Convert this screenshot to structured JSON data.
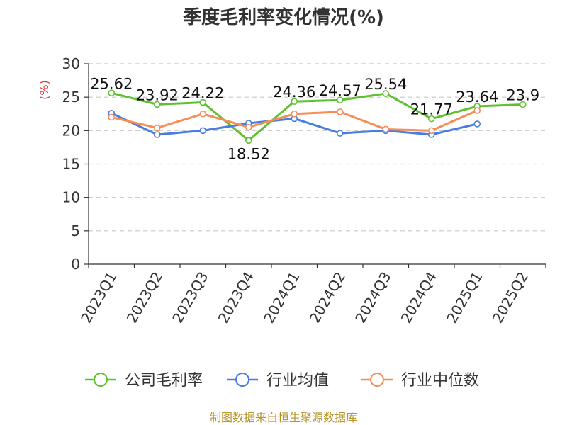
{
  "chart_data": {
    "type": "line",
    "title": "季度毛利率变化情况(%)",
    "ylabel": "(%)",
    "categories": [
      "2023Q1",
      "2023Q2",
      "2023Q3",
      "2023Q4",
      "2024Q1",
      "2024Q2",
      "2024Q3",
      "2024Q4",
      "2025Q1",
      "2025Q2"
    ],
    "ylim": [
      0,
      30
    ],
    "yticks": [
      "0",
      "5",
      "10",
      "15",
      "20",
      "25",
      "30"
    ],
    "grid": true,
    "legend_position": "bottom",
    "series": [
      {
        "name": "公司毛利率",
        "color": "#5ec130",
        "values": [
          25.62,
          23.92,
          24.22,
          18.52,
          24.36,
          24.57,
          25.54,
          21.77,
          23.64,
          23.9
        ],
        "labels": [
          "25.62",
          "23.92",
          "24.22",
          "18.52",
          "24.36",
          "24.57",
          "25.54",
          "21.77",
          "23.64",
          "23.9"
        ]
      },
      {
        "name": "行业均值",
        "color": "#4a7de0",
        "values": [
          22.6,
          19.4,
          20.0,
          21.1,
          21.8,
          19.6,
          20.0,
          19.4,
          21.0,
          null
        ]
      },
      {
        "name": "行业中位数",
        "color": "#f78d57",
        "values": [
          22.0,
          20.4,
          22.5,
          20.5,
          22.5,
          22.8,
          20.2,
          20.0,
          23.0,
          null
        ]
      }
    ],
    "source": "制图数据来自恒生聚源数据库"
  }
}
